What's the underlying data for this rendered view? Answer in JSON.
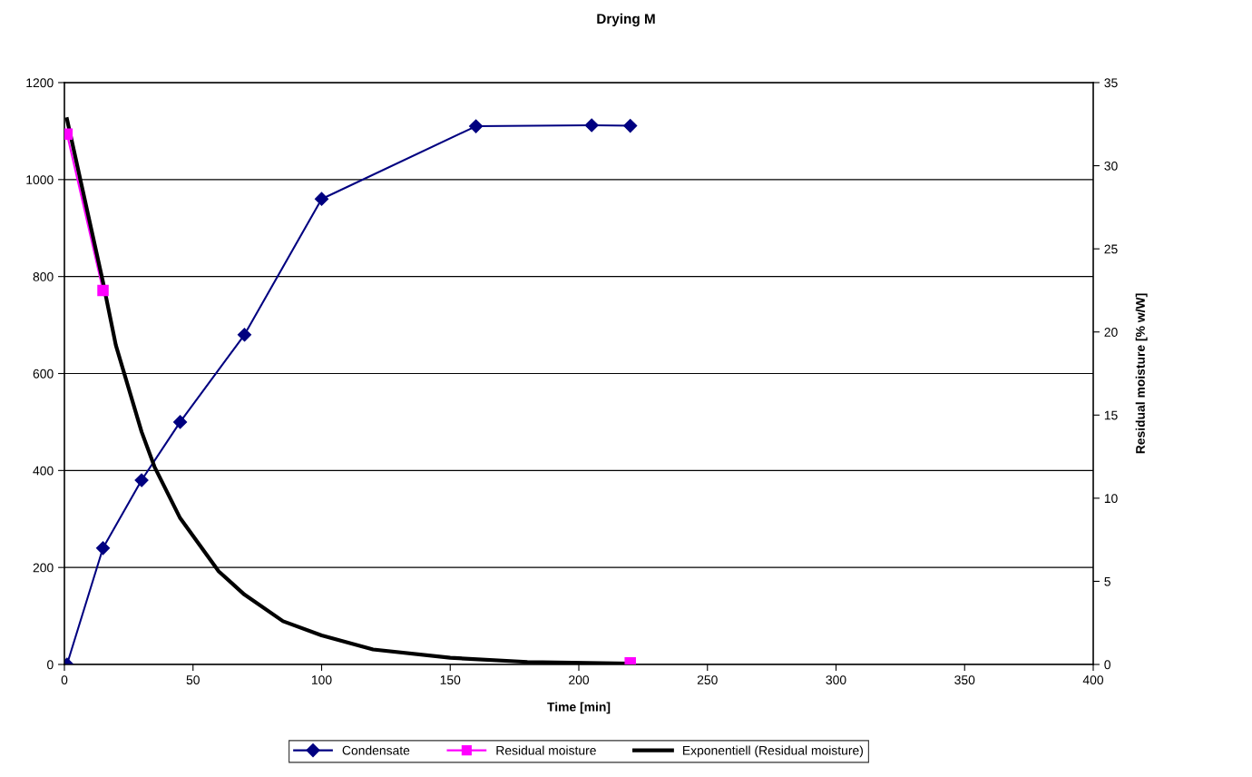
{
  "chart_data": {
    "type": "line",
    "title": "Drying M",
    "xlabel": "Time [min]",
    "y2label": "Residual moisture [% w/W]",
    "xlim": [
      0,
      400
    ],
    "xticks": [
      0,
      50,
      100,
      150,
      200,
      250,
      300,
      350,
      400
    ],
    "ylim": [
      0,
      1200
    ],
    "yticks": [
      0,
      200,
      400,
      600,
      800,
      1000,
      1200
    ],
    "y2lim": [
      0,
      35
    ],
    "y2ticks": [
      0,
      5,
      10,
      15,
      20,
      25,
      30,
      35
    ],
    "grid": "y",
    "legend": "bottom",
    "series": [
      {
        "name": "Condensate",
        "color": "#000080",
        "marker": "diamond",
        "x": [
          1,
          15,
          30,
          45,
          70,
          100,
          160,
          205,
          220
        ],
        "values": [
          0,
          240,
          380,
          500,
          680,
          960,
          1110,
          1112,
          1111
        ]
      },
      {
        "name": "Residual moisture",
        "color": "#ff00ff",
        "marker": "square",
        "axis": "y2",
        "x": [
          1,
          15,
          30,
          45,
          70,
          100,
          160,
          205,
          220
        ],
        "values": [
          31.9,
          22.5,
          null,
          null,
          null,
          null,
          null,
          null,
          0.1
        ]
      },
      {
        "name": "Exponentiell (Residual moisture)",
        "color": "#000000",
        "marker": "none",
        "axis": "y2",
        "x": [
          1,
          15,
          20,
          30,
          35,
          45,
          60,
          70,
          85,
          100,
          120,
          150,
          180,
          220
        ],
        "values": [
          32.8,
          23.0,
          19.2,
          14.0,
          11.9,
          8.8,
          5.6,
          4.2,
          2.6,
          1.75,
          0.9,
          0.4,
          0.15,
          0.05
        ]
      }
    ]
  }
}
